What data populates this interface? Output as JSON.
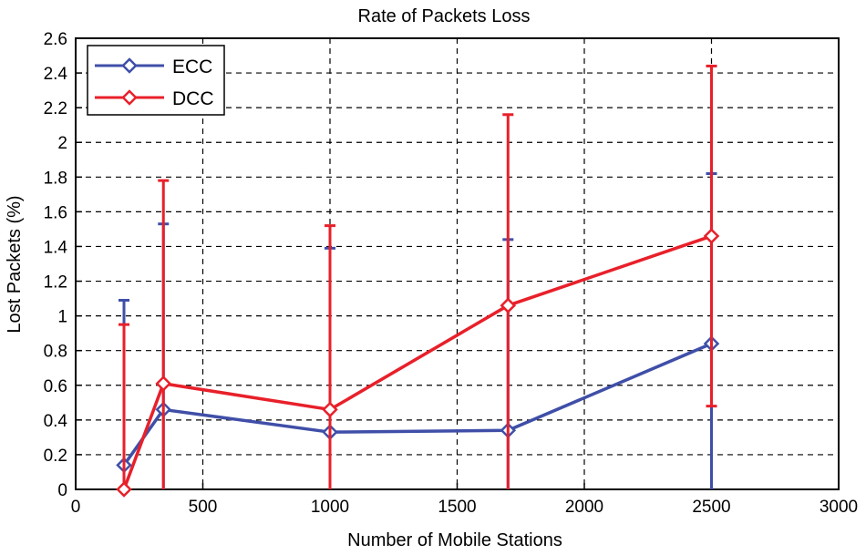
{
  "chart_data": {
    "type": "line",
    "title": "Rate of Packets Loss",
    "xlabel": "Number of Mobile Stations",
    "ylabel": "Lost Packets (%)",
    "xlim": [
      0,
      3000
    ],
    "ylim": [
      0,
      2.6
    ],
    "xticks": [
      0,
      500,
      1000,
      1500,
      2000,
      2500,
      3000
    ],
    "yticks": [
      0,
      0.2,
      0.4,
      0.6,
      0.8,
      1,
      1.2,
      1.4,
      1.6,
      1.8,
      2,
      2.2,
      2.4,
      2.6
    ],
    "grid": true,
    "legend_position": "top-left",
    "marker": "diamond",
    "series": [
      {
        "name": "ECC",
        "color": "#3f4fa8",
        "x": [
          190,
          345,
          1000,
          1700,
          2500
        ],
        "y": [
          0.14,
          0.46,
          0.33,
          0.34,
          0.84
        ],
        "err_upper": [
          1.09,
          1.53,
          1.39,
          1.44,
          1.82
        ],
        "err_lower": [
          0.0,
          0.0,
          0.0,
          0.0,
          0.0
        ]
      },
      {
        "name": "DCC",
        "color": "#e8202a",
        "x": [
          190,
          345,
          1000,
          1700,
          2500
        ],
        "y": [
          0.0,
          0.61,
          0.46,
          1.06,
          1.46
        ],
        "err_upper": [
          0.95,
          1.78,
          1.52,
          2.16,
          2.44
        ],
        "err_lower": [
          0.0,
          0.0,
          0.0,
          0.0,
          0.48
        ]
      }
    ]
  }
}
